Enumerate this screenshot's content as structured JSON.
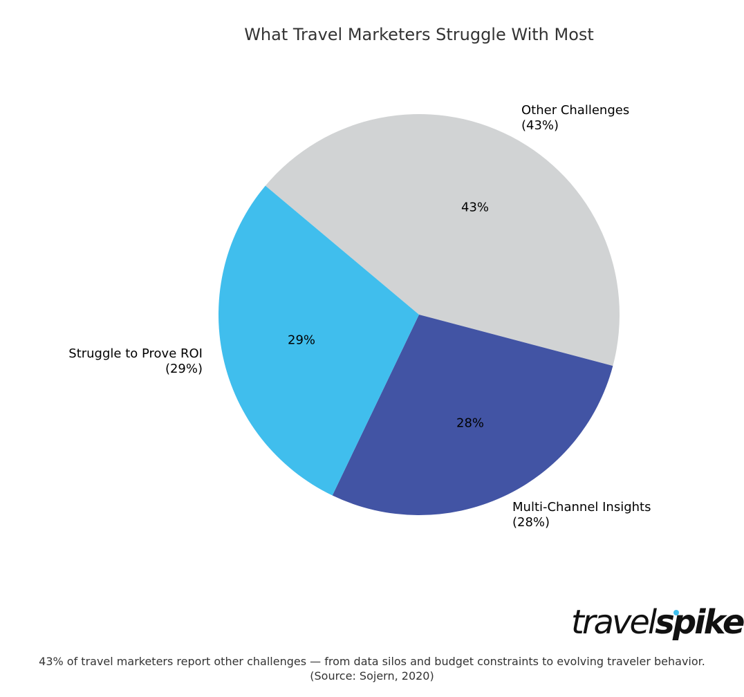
{
  "chart_data": {
    "type": "pie",
    "title": "What Travel Marketers Struggle With Most",
    "categories": [
      "Other Challenges",
      "Multi-Channel Insights",
      "Struggle to Prove ROI"
    ],
    "values": [
      43,
      28,
      29
    ],
    "units": "%",
    "colors": [
      "#d1d3d4",
      "#4254a4",
      "#40beed"
    ],
    "slice_labels": [
      "43%",
      "28%",
      "29%"
    ],
    "outer_labels": [
      {
        "name": "Other Challenges",
        "pct": "(43%)"
      },
      {
        "name": "Multi-Channel Insights",
        "pct": "(28%)"
      },
      {
        "name": "Struggle to Prove ROI",
        "pct": "(29%)"
      }
    ],
    "start_angle_deg": 140,
    "direction": "clockwise",
    "legend": "none"
  },
  "brand": {
    "logo_light": "travel",
    "logo_bold": "spike",
    "dot_color": "#3dbfee"
  },
  "caption": {
    "line1": "43% of travel marketers report other challenges — from data silos and budget constraints to evolving traveler behavior.",
    "line2": "(Source: Sojern, 2020)"
  }
}
